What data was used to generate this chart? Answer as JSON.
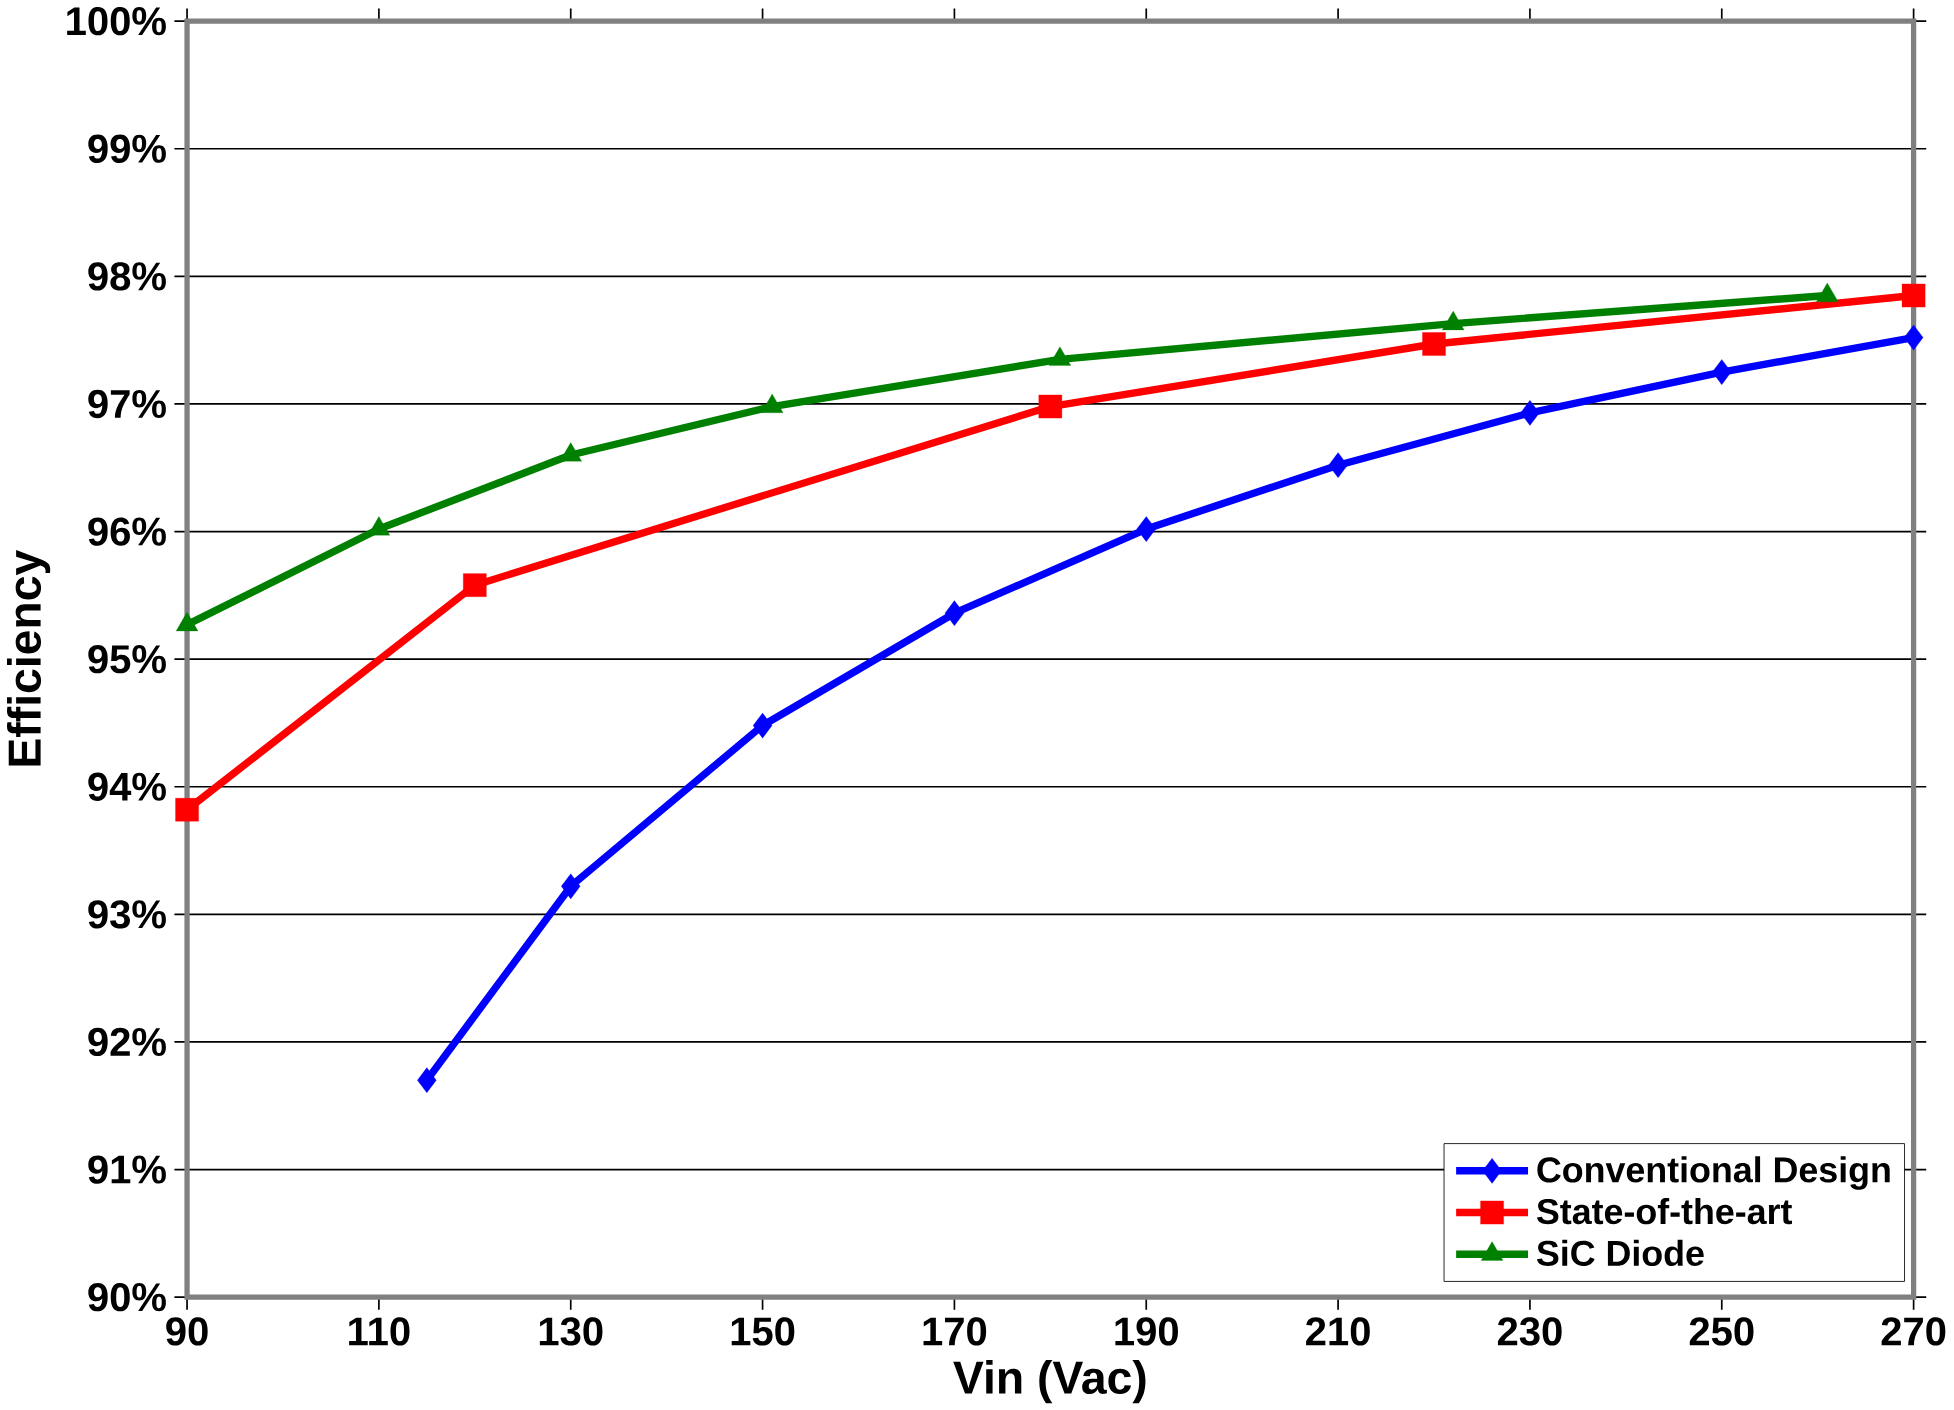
{
  "chart_data": {
    "type": "line",
    "xlabel": "Vin (Vac)",
    "ylabel": "Efficiency",
    "xlim": [
      90,
      270
    ],
    "xticks": [
      90,
      110,
      130,
      150,
      170,
      190,
      210,
      230,
      250,
      270
    ],
    "ylim": [
      90,
      100
    ],
    "yticks": [
      {
        "value": 90,
        "label": "90%"
      },
      {
        "value": 91,
        "label": "91%"
      },
      {
        "value": 92,
        "label": "92%"
      },
      {
        "value": 93,
        "label": "93%"
      },
      {
        "value": 94,
        "label": "94%"
      },
      {
        "value": 95,
        "label": "95%"
      },
      {
        "value": 96,
        "label": "96%"
      },
      {
        "value": 97,
        "label": "97%"
      },
      {
        "value": 98,
        "label": "98%"
      },
      {
        "value": 99,
        "label": "99%"
      },
      {
        "value": 100,
        "label": "100%"
      }
    ],
    "grid": "y",
    "legend": "bottom right",
    "series": [
      {
        "name": "Conventional Design",
        "color": "#0000ff",
        "marker": "diamond",
        "x": [
          115,
          130,
          150,
          170,
          190,
          210,
          230,
          250,
          270
        ],
        "values": [
          91.7,
          93.22,
          94.48,
          95.36,
          96.02,
          96.52,
          96.93,
          97.25,
          97.52
        ]
      },
      {
        "name": "State-of-the-art",
        "color": "#ff0000",
        "marker": "square",
        "x": [
          90,
          120,
          180,
          220,
          270
        ],
        "values": [
          93.82,
          95.58,
          96.98,
          97.47,
          97.85
        ]
      },
      {
        "name": "SiC Diode",
        "color": "#008000",
        "marker": "triangle",
        "x": [
          90,
          110,
          130,
          151,
          181,
          222,
          261
        ],
        "values": [
          95.27,
          96.02,
          96.6,
          96.98,
          97.35,
          97.63,
          97.85
        ]
      }
    ]
  }
}
